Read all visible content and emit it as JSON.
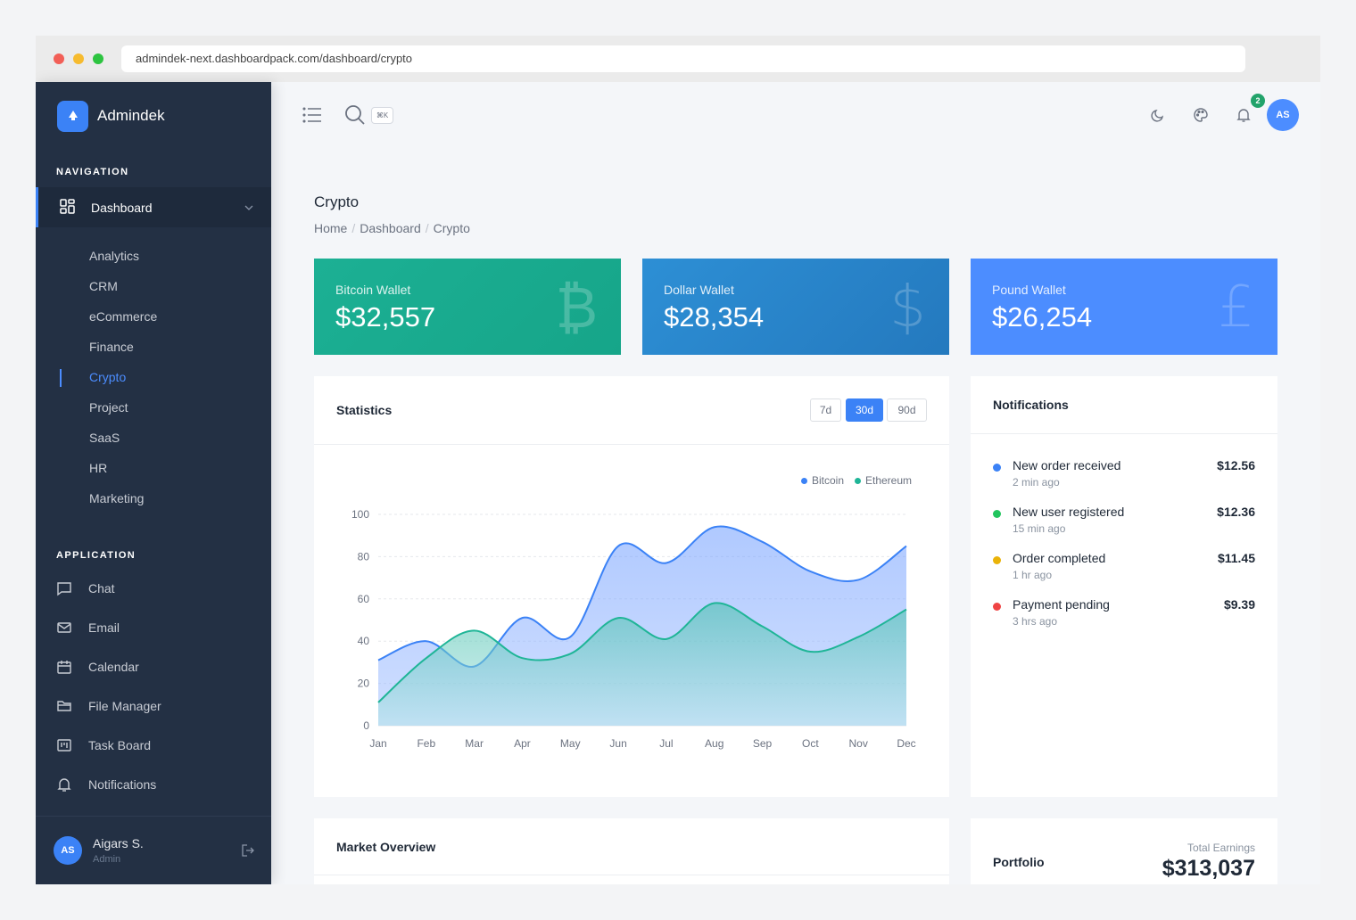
{
  "browser": {
    "url": "admindek-next.dashboardpack.com/dashboard/crypto"
  },
  "sidebar": {
    "brand": "Admindek",
    "navigation_label": "NAVIGATION",
    "dashboard_label": "Dashboard",
    "sub_items": [
      "Analytics",
      "CRM",
      "eCommerce",
      "Finance",
      "Crypto",
      "Project",
      "SaaS",
      "HR",
      "Marketing"
    ],
    "active_sub_item": "Crypto",
    "application_label": "APPLICATION",
    "app_items": [
      {
        "label": "Chat",
        "icon": "chat-icon"
      },
      {
        "label": "Email",
        "icon": "mail-icon"
      },
      {
        "label": "Calendar",
        "icon": "calendar-icon"
      },
      {
        "label": "File Manager",
        "icon": "folder-icon"
      },
      {
        "label": "Task Board",
        "icon": "kanban-icon"
      },
      {
        "label": "Notifications",
        "icon": "bell-icon"
      }
    ],
    "user": {
      "initials": "AS",
      "name": "Aigars S.",
      "role": "Admin"
    }
  },
  "topbar": {
    "search_shortcut": "⌘K",
    "notification_count": "2",
    "avatar_initials": "AS"
  },
  "page": {
    "title": "Crypto",
    "breadcrumb": [
      "Home",
      "Dashboard",
      "Crypto"
    ]
  },
  "wallets": [
    {
      "label": "Bitcoin Wallet",
      "value": "$32,557",
      "symbol": "₿",
      "color": "#1cb094"
    },
    {
      "label": "Dollar Wallet",
      "value": "$28,354",
      "symbol": "$",
      "color": "#2d8fd5"
    },
    {
      "label": "Pound Wallet",
      "value": "$26,254",
      "symbol": "£",
      "color": "#4c8dff"
    }
  ],
  "statistics": {
    "title": "Statistics",
    "ranges": [
      "7d",
      "30d",
      "90d"
    ],
    "active_range": "30d"
  },
  "chart_data": {
    "type": "area",
    "categories": [
      "Jan",
      "Feb",
      "Mar",
      "Apr",
      "May",
      "Jun",
      "Jul",
      "Aug",
      "Sep",
      "Oct",
      "Nov",
      "Dec"
    ],
    "series": [
      {
        "name": "Bitcoin",
        "color": "#3b82f6",
        "values": [
          31,
          40,
          28,
          51,
          42,
          85,
          77,
          94,
          87,
          73,
          69,
          85
        ]
      },
      {
        "name": "Ethereum",
        "color": "#1fb597",
        "values": [
          11,
          32,
          45,
          32,
          34,
          51,
          41,
          58,
          47,
          35,
          42,
          55
        ]
      }
    ],
    "yticks": [
      0,
      20,
      40,
      60,
      80,
      100
    ],
    "ylim": [
      0,
      100
    ],
    "legend_position": "top-right",
    "grid": true
  },
  "notifications": {
    "title": "Notifications",
    "items": [
      {
        "title": "New order received",
        "time": "2 min ago",
        "amount": "$12.56",
        "color": "#3b82f6"
      },
      {
        "title": "New user registered",
        "time": "15 min ago",
        "amount": "$12.36",
        "color": "#22c55e"
      },
      {
        "title": "Order completed",
        "time": "1 hr ago",
        "amount": "$11.45",
        "color": "#eab308"
      },
      {
        "title": "Payment pending",
        "time": "3 hrs ago",
        "amount": "$9.39",
        "color": "#ef4444"
      }
    ]
  },
  "market": {
    "title": "Market Overview"
  },
  "portfolio": {
    "title": "Portfolio",
    "earnings_label": "Total Earnings",
    "earnings_value": "$313,037"
  }
}
